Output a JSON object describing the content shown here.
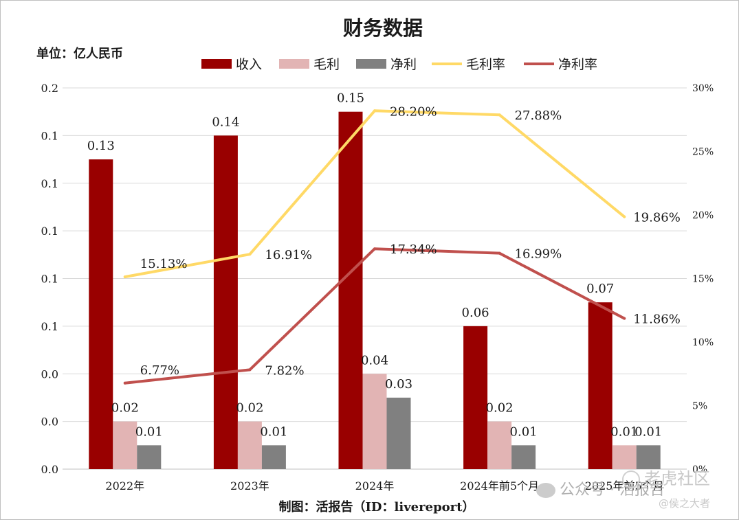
{
  "page": {
    "title": "财务数据",
    "unit_label": "单位：亿人民币",
    "credit": "制图：活报告（ID：livereport）",
    "watermark_account": "公众号 · 活报告",
    "watermark_community": "老虎社区",
    "watermark_user": "@侯之大者"
  },
  "chart_data": {
    "type": "bar",
    "categories": [
      "2022年",
      "2023年",
      "2024年",
      "2024年前5个月",
      "2025年前5个月"
    ],
    "series": [
      {
        "name": "收入",
        "kind": "bar",
        "axis": "left",
        "color": "#990000",
        "values": [
          0.13,
          0.14,
          0.15,
          0.06,
          0.07
        ],
        "labels": [
          "0.13",
          "0.14",
          "0.15",
          "0.06",
          "0.07"
        ]
      },
      {
        "name": "毛利",
        "kind": "bar",
        "axis": "left",
        "color": "#e2b4b4",
        "values": [
          0.02,
          0.02,
          0.04,
          0.02,
          0.01
        ],
        "labels": [
          "0.02",
          "0.02",
          "0.04",
          "0.02",
          "0.01"
        ]
      },
      {
        "name": "净利",
        "kind": "bar",
        "axis": "left",
        "color": "#808080",
        "values": [
          0.01,
          0.01,
          0.03,
          0.01,
          0.01
        ],
        "labels": [
          "0.01",
          "0.01",
          "0.03",
          "0.01",
          "0.01"
        ]
      },
      {
        "name": "毛利率",
        "kind": "line",
        "axis": "right",
        "color": "#ffd966",
        "values": [
          15.13,
          16.91,
          28.2,
          27.88,
          19.86
        ],
        "labels": [
          "15.13%",
          "16.91%",
          "28.20%",
          "27.88%",
          "19.86%"
        ]
      },
      {
        "name": "净利率",
        "kind": "line",
        "axis": "right",
        "color": "#c0504d",
        "values": [
          6.77,
          7.82,
          17.34,
          16.99,
          11.86
        ],
        "labels": [
          "6.77%",
          "7.82%",
          "17.34%",
          "16.99%",
          "11.86%"
        ]
      }
    ],
    "y_left": {
      "ylim": [
        0,
        0.16
      ],
      "ticks": [
        0,
        0.02,
        0.04,
        0.06,
        0.08,
        0.1,
        0.12,
        0.14,
        0.16
      ],
      "tick_labels": [
        "0.0",
        "0.0",
        "0.0",
        "0.1",
        "0.1",
        "0.1",
        "0.1",
        "0.1",
        "0.2"
      ]
    },
    "y_right": {
      "ylim": [
        0,
        30
      ],
      "ticks": [
        0,
        5,
        10,
        15,
        20,
        25,
        30
      ],
      "tick_labels": [
        "0%",
        "5%",
        "10%",
        "15%",
        "20%",
        "25%",
        "30%"
      ]
    },
    "grid": true,
    "legend": "top"
  }
}
